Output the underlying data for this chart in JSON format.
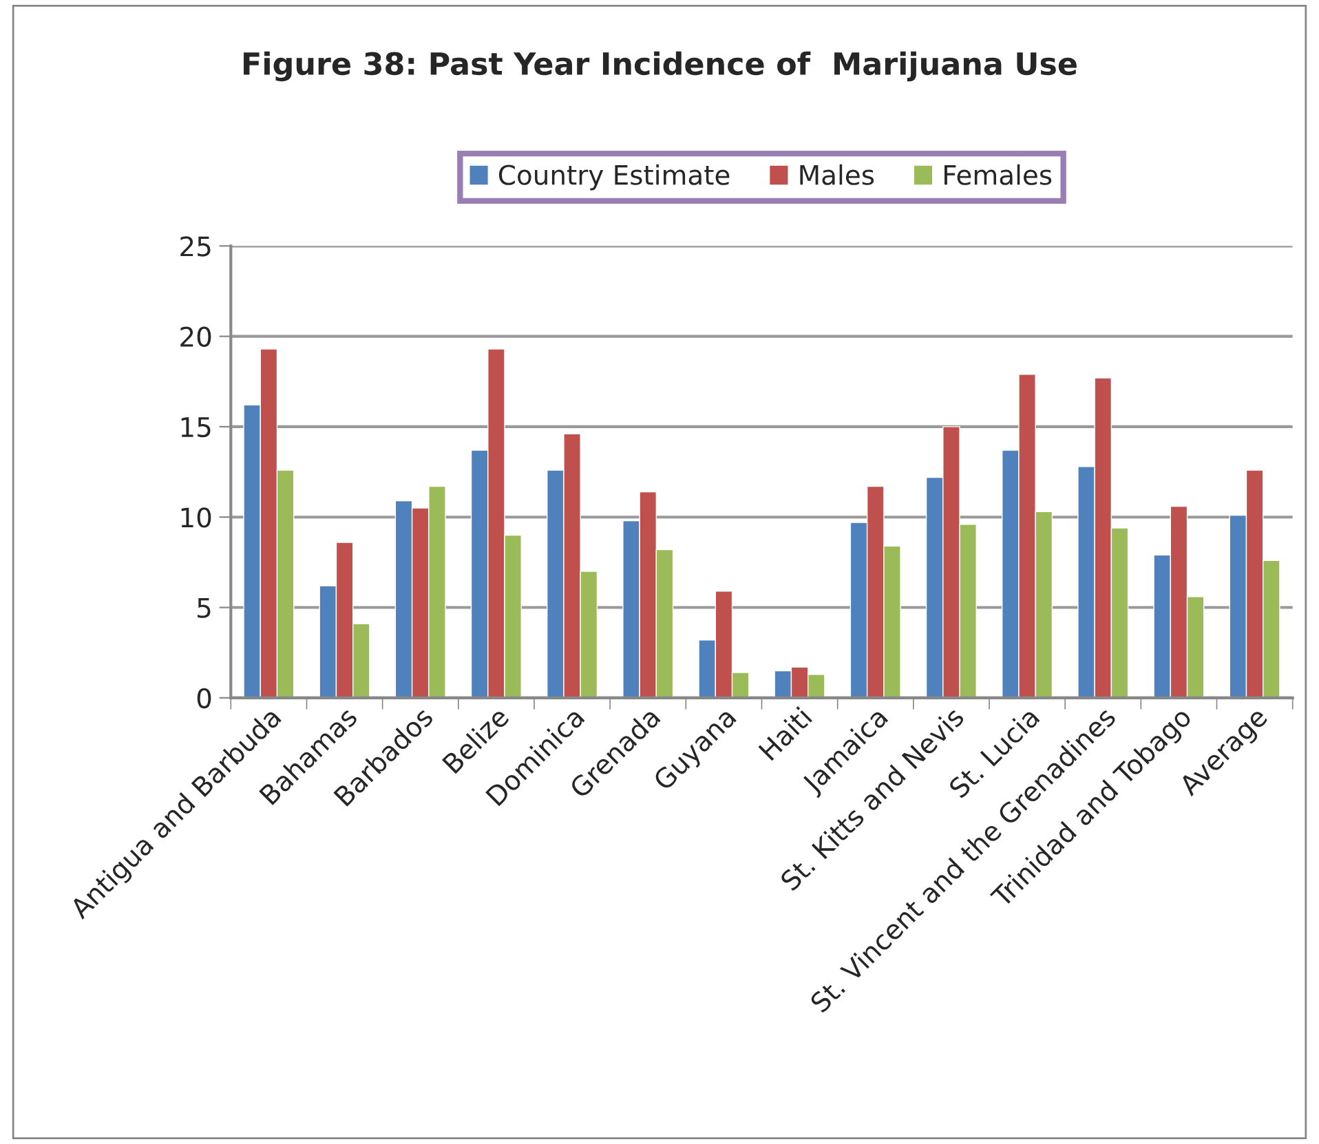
{
  "chart_data": {
    "type": "bar",
    "title": "Figure 38: Past Year Incidence of  Marijuana Use",
    "categories": [
      "Antigua and Barbuda",
      "Bahamas",
      "Barbados",
      "Belize",
      "Dominica",
      "Grenada",
      "Guyana",
      "Haiti",
      "Jamaica",
      "St. Kitts and Nevis",
      "St. Lucia",
      "St. Vincent and the Grenadines",
      "Trinidad and Tobago",
      "Average"
    ],
    "series": [
      {
        "name": "Country Estimate",
        "color": "#4f81bd",
        "values": [
          16.2,
          6.2,
          10.9,
          13.7,
          12.6,
          9.8,
          3.2,
          1.5,
          9.7,
          12.2,
          13.7,
          12.8,
          7.9,
          10.1
        ]
      },
      {
        "name": "Males",
        "color": "#c0504d",
        "values": [
          19.3,
          8.6,
          10.5,
          19.3,
          14.6,
          11.4,
          5.9,
          1.7,
          11.7,
          15.0,
          17.9,
          17.7,
          10.6,
          12.6
        ]
      },
      {
        "name": "Females",
        "color": "#9bbb59",
        "values": [
          12.6,
          4.1,
          11.7,
          9.0,
          7.0,
          8.2,
          1.4,
          1.3,
          8.4,
          9.6,
          10.3,
          9.4,
          5.6,
          7.6
        ]
      }
    ],
    "ylim": [
      0,
      25
    ],
    "yticks": [
      0,
      5,
      10,
      15,
      20,
      25
    ],
    "grid": "y",
    "legend": "top"
  }
}
